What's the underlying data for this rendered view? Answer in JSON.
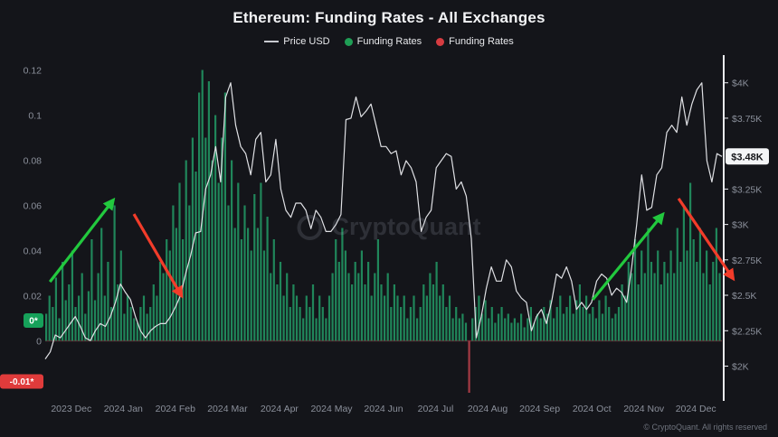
{
  "watermark": "CryptoQuant",
  "footer": {
    "copyright": "© CryptoQuant. All rights reserved"
  },
  "chart_data": {
    "type": "bar+line",
    "title": "Ethereum: Funding Rates - All Exchanges",
    "xlabel": "",
    "ylabel_left": "Funding Rates",
    "ylabel_right": "Price USD",
    "legend_items": [
      {
        "label": "Price USD",
        "swatch": "line",
        "color": "#c9cbd1"
      },
      {
        "label": "Funding Rates",
        "swatch": "dot",
        "color": "#1f9e55"
      },
      {
        "label": "Funding Rates",
        "swatch": "dot",
        "color": "#d63c41"
      }
    ],
    "x_months": [
      "2023 Dec",
      "2024 Jan",
      "2024 Feb",
      "2024 Mar",
      "2024 Apr",
      "2024 May",
      "2024 Jun",
      "2024 Jul",
      "2024 Aug",
      "2024 Sep",
      "2024 Oct",
      "2024 Nov",
      "2024 Dec"
    ],
    "left_axis": {
      "range": [
        -0.025,
        0.125
      ],
      "ticks": [
        0.12,
        0.1,
        0.08,
        0.06,
        0.04,
        0.02,
        0
      ],
      "badges": [
        {
          "text": "0*",
          "value": 0.009,
          "color": "#16a15a"
        },
        {
          "text": "-0.01*",
          "value": -0.018,
          "color": "#e03b3b"
        }
      ]
    },
    "right_axis": {
      "range": [
        1780,
        4170
      ],
      "ticks": [
        {
          "label": "$4K",
          "value": 4000
        },
        {
          "label": "$3.75K",
          "value": 3750
        },
        {
          "label": "$3.25K",
          "value": 3250
        },
        {
          "label": "$3K",
          "value": 3000
        },
        {
          "label": "$2.75K",
          "value": 2750
        },
        {
          "label": "$2.5K",
          "value": 2500
        },
        {
          "label": "$2.25K",
          "value": 2250
        },
        {
          "label": "$2K",
          "value": 2000
        }
      ],
      "price_badge": {
        "text": "$3.48K",
        "value": 3480
      }
    },
    "colors": {
      "bar_positive": "#20865a",
      "bar_negative": "#a63a44",
      "price_line": "#dfe0e4",
      "axis_line": "#e9eaee",
      "baseline_red": "#5d2730"
    },
    "series": [
      {
        "name": "Price USD",
        "type": "line",
        "unit": "USD",
        "values": [
          2050,
          2100,
          2220,
          2200,
          2250,
          2300,
          2350,
          2280,
          2200,
          2180,
          2250,
          2300,
          2280,
          2350,
          2450,
          2580,
          2520,
          2470,
          2350,
          2250,
          2200,
          2250,
          2280,
          2300,
          2300,
          2350,
          2420,
          2500,
          2650,
          2780,
          2940,
          2950,
          3250,
          3350,
          3550,
          3300,
          3900,
          4000,
          3700,
          3550,
          3500,
          3350,
          3600,
          3650,
          3300,
          3350,
          3600,
          3250,
          3100,
          3050,
          3150,
          3150,
          3100,
          2970,
          3100,
          3050,
          2950,
          2950,
          3000,
          3070,
          3740,
          3750,
          3900,
          3760,
          3800,
          3850,
          3700,
          3550,
          3550,
          3500,
          3520,
          3350,
          3450,
          3400,
          3300,
          2950,
          3050,
          3100,
          3400,
          3450,
          3500,
          3480,
          3250,
          3300,
          3200,
          2900,
          2200,
          2350,
          2550,
          2700,
          2600,
          2600,
          2750,
          2700,
          2530,
          2480,
          2450,
          2250,
          2350,
          2400,
          2300,
          2450,
          2650,
          2620,
          2700,
          2600,
          2400,
          2450,
          2400,
          2450,
          2600,
          2650,
          2620,
          2500,
          2550,
          2520,
          2450,
          2700,
          3000,
          3350,
          3100,
          3120,
          3350,
          3400,
          3650,
          3700,
          3650,
          3900,
          3700,
          3850,
          3950,
          4000,
          3450,
          3300,
          3500,
          3480
        ]
      },
      {
        "name": "Funding Rates",
        "type": "bar",
        "values": [
          0.012,
          0.02,
          0.015,
          0.028,
          0.01,
          0.035,
          0.018,
          0.025,
          0.04,
          0.015,
          0.02,
          0.03,
          0.012,
          0.022,
          0.045,
          0.018,
          0.03,
          0.05,
          0.02,
          0.035,
          0.015,
          0.06,
          0.025,
          0.04,
          0.012,
          0.02,
          0.015,
          0.01,
          0.008,
          0.015,
          0.02,
          0.012,
          0.015,
          0.025,
          0.02,
          0.035,
          0.03,
          0.045,
          0.04,
          0.06,
          0.05,
          0.07,
          0.045,
          0.08,
          0.06,
          0.09,
          0.075,
          0.11,
          0.12,
          0.09,
          0.115,
          0.08,
          0.1,
          0.07,
          0.09,
          0.11,
          0.06,
          0.08,
          0.05,
          0.07,
          0.045,
          0.06,
          0.05,
          0.04,
          0.065,
          0.05,
          0.07,
          0.04,
          0.055,
          0.03,
          0.045,
          0.025,
          0.035,
          0.02,
          0.03,
          0.015,
          0.025,
          0.02,
          0.015,
          0.01,
          0.02,
          0.015,
          0.025,
          0.01,
          0.02,
          0.015,
          0.01,
          0.02,
          0.03,
          0.045,
          0.035,
          0.05,
          0.04,
          0.03,
          0.025,
          0.035,
          0.03,
          0.04,
          0.025,
          0.035,
          0.02,
          0.03,
          0.045,
          0.025,
          0.02,
          0.03,
          0.015,
          0.025,
          0.02,
          0.015,
          0.02,
          0.01,
          0.015,
          0.02,
          0.01,
          0.015,
          0.025,
          0.02,
          0.03,
          0.025,
          0.035,
          0.02,
          0.025,
          0.015,
          0.02,
          0.01,
          0.015,
          0.01,
          0.012,
          0.008,
          -0.023,
          0.01,
          0.015,
          0.02,
          0.012,
          0.018,
          0.01,
          0.015,
          0.008,
          0.012,
          0.015,
          0.01,
          0.012,
          0.008,
          0.01,
          0.008,
          0.012,
          0.006,
          0.01,
          0.015,
          0.008,
          0.012,
          0.01,
          0.015,
          0.012,
          0.018,
          0.01,
          0.015,
          0.02,
          0.012,
          0.015,
          0.02,
          0.012,
          0.018,
          0.025,
          0.015,
          0.02,
          0.012,
          0.015,
          0.01,
          0.018,
          0.012,
          0.02,
          0.015,
          0.01,
          0.012,
          0.015,
          0.025,
          0.02,
          0.035,
          0.03,
          0.045,
          0.025,
          0.04,
          0.03,
          0.05,
          0.035,
          0.03,
          0.04,
          0.025,
          0.035,
          0.03,
          0.04,
          0.03,
          0.05,
          0.035,
          0.06,
          0.04,
          0.07,
          0.045,
          0.035,
          0.05,
          0.03,
          0.04,
          0.025,
          0.035,
          0.05,
          0.03
        ]
      }
    ],
    "annotations": [
      {
        "name": "green-up-arrow-early",
        "color": "#22c93e",
        "from": [
          0.007,
          0.659
        ],
        "to": [
          0.1,
          0.419
        ]
      },
      {
        "name": "red-down-arrow-early",
        "color": "#f23c2a",
        "from": [
          0.131,
          0.459
        ],
        "to": [
          0.201,
          0.699
        ]
      },
      {
        "name": "green-up-arrow-late",
        "color": "#22c93e",
        "from": [
          0.809,
          0.712
        ],
        "to": [
          0.912,
          0.461
        ]
      },
      {
        "name": "red-down-arrow-late",
        "color": "#f23c2a",
        "from": [
          0.936,
          0.413
        ],
        "to": [
          1.016,
          0.648
        ]
      }
    ]
  }
}
